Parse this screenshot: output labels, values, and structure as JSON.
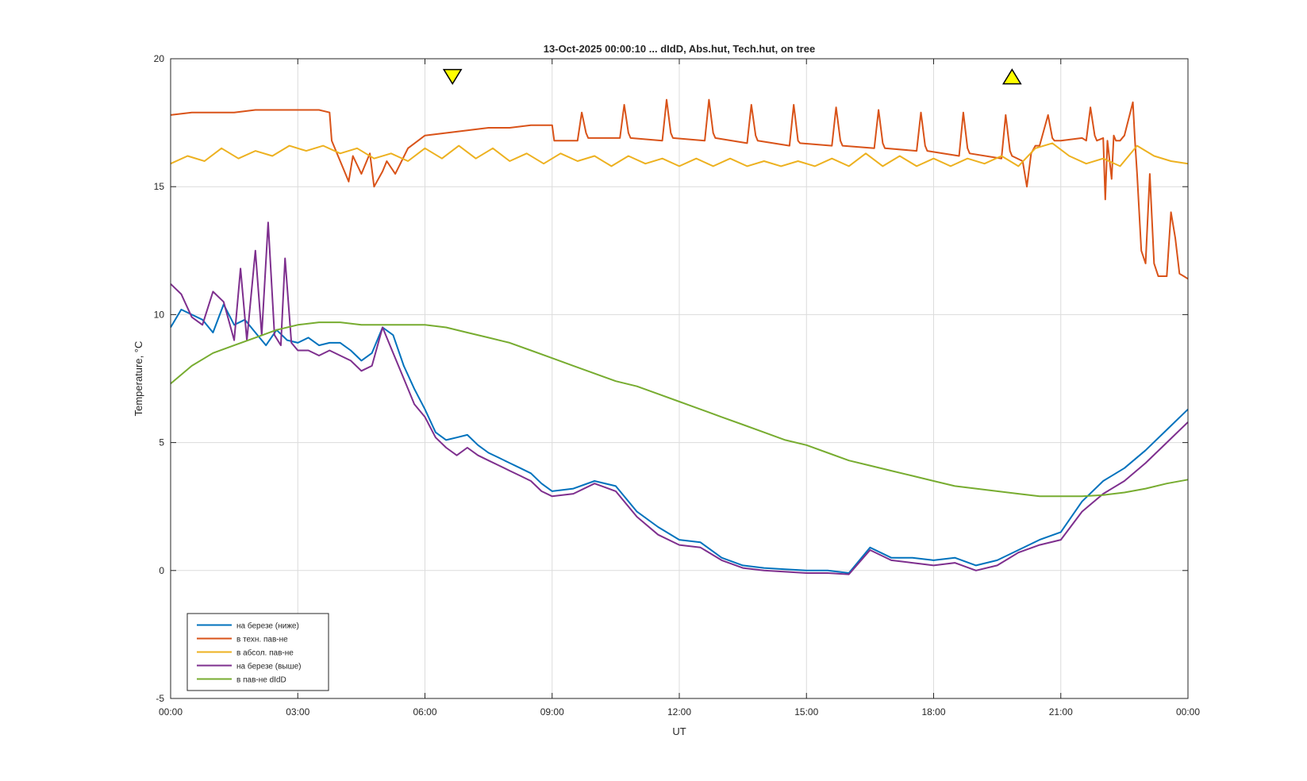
{
  "chart_data": {
    "type": "line",
    "title": "13-Oct-2025 00:00:10 ... dIdD, Abs.hut, Tech.hut, on tree",
    "xlabel": "UT",
    "ylabel": "Temperature, °C",
    "xlim": [
      0,
      24
    ],
    "ylim": [
      -5,
      20
    ],
    "x_ticks": [
      "00:00",
      "03:00",
      "06:00",
      "09:00",
      "12:00",
      "15:00",
      "18:00",
      "21:00",
      "00:00"
    ],
    "x_tick_values": [
      0,
      3,
      6,
      9,
      12,
      15,
      18,
      21,
      24
    ],
    "y_ticks": [
      "-5",
      "0",
      "5",
      "10",
      "15",
      "20"
    ],
    "y_tick_values": [
      -5,
      0,
      5,
      10,
      15,
      20
    ],
    "grid": true,
    "legend_position": "bottom-left",
    "markers": [
      {
        "type": "triangle-down",
        "x": 6.65,
        "y": 19.3,
        "color": "#ffff00"
      },
      {
        "type": "triangle-up",
        "x": 19.85,
        "y": 19.3,
        "color": "#ffff00"
      }
    ],
    "series": [
      {
        "name": "на березе (ниже)",
        "color": "#0072bd",
        "x": [
          0,
          0.25,
          0.5,
          0.75,
          1,
          1.25,
          1.5,
          1.75,
          2,
          2.25,
          2.5,
          2.75,
          3,
          3.25,
          3.5,
          3.75,
          4,
          4.25,
          4.5,
          4.75,
          5,
          5.25,
          5.5,
          5.75,
          6,
          6.25,
          6.5,
          6.75,
          7,
          7.25,
          7.5,
          7.75,
          8,
          8.25,
          8.5,
          8.75,
          9,
          9.5,
          10,
          10.5,
          11,
          11.5,
          12,
          12.5,
          13,
          13.5,
          14,
          14.5,
          15,
          15.5,
          16,
          16.5,
          17,
          17.5,
          18,
          18.5,
          19,
          19.5,
          20,
          20.5,
          21,
          21.5,
          22,
          22.5,
          23,
          23.5,
          24
        ],
        "y": [
          9.5,
          10.2,
          10,
          9.8,
          9.3,
          10.4,
          9.6,
          9.8,
          9.3,
          8.8,
          9.4,
          9,
          8.9,
          9.1,
          8.8,
          8.9,
          8.9,
          8.6,
          8.2,
          8.5,
          9.5,
          9.2,
          8,
          7.1,
          6.3,
          5.4,
          5.1,
          5.2,
          5.3,
          4.9,
          4.6,
          4.4,
          4.2,
          4,
          3.8,
          3.4,
          3.1,
          3.2,
          3.5,
          3.3,
          2.3,
          1.7,
          1.2,
          1.1,
          0.5,
          0.2,
          0.1,
          0.05,
          0,
          0,
          -0.1,
          0.9,
          0.5,
          0.5,
          0.4,
          0.5,
          0.2,
          0.4,
          0.8,
          1.2,
          1.5,
          2.7,
          3.5,
          4,
          4.7,
          5.5,
          6.3
        ]
      },
      {
        "name": "в техн. пав-не",
        "color": "#d95319",
        "x": [
          0,
          0.5,
          1,
          1.5,
          2,
          2.5,
          3,
          3.5,
          3.75,
          3.8,
          4,
          4.2,
          4.3,
          4.5,
          4.7,
          4.8,
          5,
          5.1,
          5.3,
          5.6,
          6,
          6.5,
          7,
          7.5,
          8,
          8.5,
          9,
          9.05,
          9.6,
          9.7,
          9.8,
          9.85,
          10.6,
          10.7,
          10.8,
          10.85,
          11.6,
          11.7,
          11.8,
          11.85,
          12.6,
          12.7,
          12.8,
          12.85,
          13.6,
          13.7,
          13.8,
          13.85,
          14.6,
          14.7,
          14.8,
          14.85,
          15.6,
          15.7,
          15.8,
          15.85,
          16.6,
          16.7,
          16.8,
          16.85,
          17.6,
          17.7,
          17.8,
          17.85,
          18.6,
          18.7,
          18.8,
          18.85,
          19.6,
          19.7,
          19.8,
          19.85,
          20.1,
          20.2,
          20.3,
          20.4,
          20.5,
          20.7,
          20.8,
          20.85,
          21,
          21.5,
          21.6,
          21.7,
          21.8,
          21.85,
          22,
          22.05,
          22.1,
          22.2,
          22.25,
          22.3,
          22.4,
          22.5,
          22.7,
          22.75,
          22.8,
          22.9,
          23,
          23.1,
          23.2,
          23.3,
          23.5,
          23.6,
          23.7,
          23.8,
          23.9,
          24
        ],
        "y": [
          17.8,
          17.9,
          17.9,
          17.9,
          18,
          18,
          18,
          18,
          17.9,
          16.8,
          16,
          15.2,
          16.2,
          15.5,
          16.3,
          15,
          15.6,
          16,
          15.5,
          16.5,
          17,
          17.1,
          17.2,
          17.3,
          17.3,
          17.4,
          17.4,
          16.8,
          16.8,
          17.9,
          17.1,
          16.9,
          16.9,
          18.2,
          17.1,
          16.9,
          16.8,
          18.4,
          17.1,
          16.9,
          16.8,
          18.4,
          17.1,
          16.9,
          16.7,
          18.2,
          17,
          16.8,
          16.6,
          18.2,
          16.8,
          16.7,
          16.6,
          18.1,
          16.8,
          16.6,
          16.5,
          18,
          16.7,
          16.5,
          16.4,
          17.9,
          16.6,
          16.4,
          16.2,
          17.9,
          16.5,
          16.3,
          16.1,
          17.8,
          16.4,
          16.2,
          16,
          15,
          16.3,
          16.6,
          16.6,
          17.8,
          16.9,
          16.8,
          16.8,
          16.9,
          16.8,
          18.1,
          17,
          16.8,
          16.9,
          14.5,
          16.8,
          15.3,
          17,
          16.8,
          16.8,
          17,
          18.3,
          16.8,
          15.5,
          12.5,
          12,
          15.5,
          12,
          11.5,
          11.5,
          14,
          13,
          11.6,
          11.5,
          11.4
        ]
      },
      {
        "name": "в абсол. пав-не",
        "color": "#edb120",
        "x": [
          0,
          0.4,
          0.8,
          1.2,
          1.6,
          2,
          2.4,
          2.8,
          3.2,
          3.6,
          4,
          4.4,
          4.8,
          5.2,
          5.6,
          6,
          6.4,
          6.8,
          7.2,
          7.6,
          8,
          8.4,
          8.8,
          9.2,
          9.6,
          10,
          10.4,
          10.8,
          11.2,
          11.6,
          12,
          12.4,
          12.8,
          13.2,
          13.6,
          14,
          14.4,
          14.8,
          15.2,
          15.6,
          16,
          16.4,
          16.8,
          17.2,
          17.6,
          18,
          18.4,
          18.8,
          19.2,
          19.6,
          20,
          20.4,
          20.8,
          21.2,
          21.6,
          22,
          22.4,
          22.8,
          23.2,
          23.6,
          24
        ],
        "y": [
          15.9,
          16.2,
          16,
          16.5,
          16.1,
          16.4,
          16.2,
          16.6,
          16.4,
          16.6,
          16.3,
          16.5,
          16.1,
          16.3,
          16,
          16.5,
          16.1,
          16.6,
          16.1,
          16.5,
          16,
          16.3,
          15.9,
          16.3,
          16,
          16.2,
          15.8,
          16.2,
          15.9,
          16.1,
          15.8,
          16.1,
          15.8,
          16.1,
          15.8,
          16,
          15.8,
          16,
          15.8,
          16.1,
          15.8,
          16.3,
          15.8,
          16.2,
          15.8,
          16.1,
          15.8,
          16.1,
          15.9,
          16.2,
          15.8,
          16.5,
          16.7,
          16.2,
          15.9,
          16.1,
          15.8,
          16.6,
          16.2,
          16,
          15.9
        ]
      },
      {
        "name": "на березе (выше)",
        "color": "#7e2f8e",
        "x": [
          0,
          0.25,
          0.5,
          0.75,
          1,
          1.25,
          1.5,
          1.65,
          1.8,
          2,
          2.15,
          2.3,
          2.45,
          2.6,
          2.7,
          2.85,
          3,
          3.25,
          3.5,
          3.75,
          4,
          4.25,
          4.5,
          4.75,
          5,
          5.25,
          5.5,
          5.75,
          6,
          6.25,
          6.5,
          6.75,
          7,
          7.25,
          7.5,
          7.75,
          8,
          8.25,
          8.5,
          8.75,
          9,
          9.5,
          10,
          10.5,
          11,
          11.5,
          12,
          12.5,
          13,
          13.5,
          14,
          14.5,
          15,
          15.5,
          16,
          16.5,
          17,
          17.5,
          18,
          18.5,
          19,
          19.5,
          20,
          20.5,
          21,
          21.5,
          22,
          22.5,
          23,
          23.5,
          24
        ],
        "y": [
          11.2,
          10.8,
          9.9,
          9.6,
          10.9,
          10.5,
          9,
          11.8,
          9,
          12.5,
          9.2,
          13.6,
          9.2,
          8.8,
          12.2,
          8.9,
          8.6,
          8.6,
          8.4,
          8.6,
          8.4,
          8.2,
          7.8,
          8,
          9.5,
          8.5,
          7.5,
          6.5,
          6,
          5.2,
          4.8,
          4.5,
          4.8,
          4.5,
          4.3,
          4.1,
          3.9,
          3.7,
          3.5,
          3.1,
          2.9,
          3,
          3.4,
          3.1,
          2.1,
          1.4,
          1,
          0.9,
          0.4,
          0.1,
          0,
          -0.05,
          -0.1,
          -0.1,
          -0.15,
          0.8,
          0.4,
          0.3,
          0.2,
          0.3,
          0,
          0.2,
          0.7,
          1,
          1.2,
          2.3,
          3,
          3.5,
          4.2,
          5,
          5.8
        ]
      },
      {
        "name": "в пав-не dIdD",
        "color": "#77ac30",
        "x": [
          0,
          0.5,
          1,
          1.5,
          2,
          2.5,
          3,
          3.5,
          4,
          4.5,
          5,
          5.5,
          6,
          6.5,
          7,
          7.5,
          8,
          8.5,
          9,
          9.5,
          10,
          10.5,
          11,
          11.5,
          12,
          12.5,
          13,
          13.5,
          14,
          14.5,
          15,
          15.5,
          16,
          16.5,
          17,
          17.5,
          18,
          18.5,
          19,
          19.5,
          20,
          20.5,
          21,
          21.5,
          22,
          22.5,
          23,
          23.5,
          24
        ],
        "y": [
          7.3,
          8,
          8.5,
          8.8,
          9.1,
          9.4,
          9.6,
          9.7,
          9.7,
          9.6,
          9.6,
          9.6,
          9.6,
          9.5,
          9.3,
          9.1,
          8.9,
          8.6,
          8.3,
          8,
          7.7,
          7.4,
          7.2,
          6.9,
          6.6,
          6.3,
          6,
          5.7,
          5.4,
          5.1,
          4.9,
          4.6,
          4.3,
          4.1,
          3.9,
          3.7,
          3.5,
          3.3,
          3.2,
          3.1,
          3,
          2.9,
          2.9,
          2.9,
          2.95,
          3.05,
          3.2,
          3.4,
          3.55
        ]
      }
    ]
  }
}
